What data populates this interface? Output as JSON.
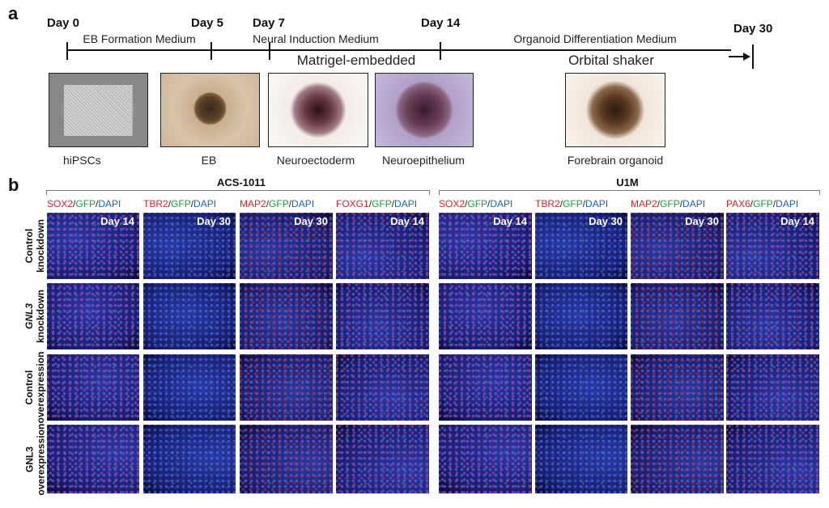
{
  "panel_a": {
    "label": "a",
    "days": [
      "Day 0",
      "Day 5",
      "Day 7",
      "Day 14",
      "Day 30"
    ],
    "media": [
      "EB Formation Medium",
      "Neural Induction Medium",
      "Organoid Differentiation Medium"
    ],
    "conditions": [
      "Matrigel-embedded",
      "Orbital shaker"
    ],
    "stages": [
      "hiPSCs",
      "EB",
      "Neuroectoderm",
      "Neuroepithelium",
      "Forebrain organoid"
    ]
  },
  "panel_b": {
    "label": "b",
    "separator": "/",
    "marker_colors": [
      "#e0202a",
      "#1a9a3a",
      "#1f5fc0"
    ],
    "groups": [
      {
        "name": "ACS-1011",
        "columns": [
          {
            "markers": [
              "SOX2",
              "GFP",
              "DAPI"
            ],
            "day": "Day 14"
          },
          {
            "markers": [
              "TBR2",
              "GFP",
              "DAPI"
            ],
            "day": "Day 30"
          },
          {
            "markers": [
              "MAP2",
              "GFP",
              "DAPI"
            ],
            "day": "Day 30"
          },
          {
            "markers": [
              "FOXG1",
              "GFP",
              "DAPI"
            ],
            "day": "Day 14"
          }
        ]
      },
      {
        "name": "U1M",
        "columns": [
          {
            "markers": [
              "SOX2",
              "GFP",
              "DAPI"
            ],
            "day": "Day 14"
          },
          {
            "markers": [
              "TBR2",
              "GFP",
              "DAPI"
            ],
            "day": "Day 30"
          },
          {
            "markers": [
              "MAP2",
              "GFP",
              "DAPI"
            ],
            "day": "Day 30"
          },
          {
            "markers": [
              "PAX6",
              "GFP",
              "DAPI"
            ],
            "day": "Day 14"
          }
        ]
      }
    ],
    "rows": [
      [
        "Control",
        "knockdown"
      ],
      [
        "GNL3",
        "knockdown"
      ],
      [
        "Control",
        "overexpression"
      ],
      [
        "GNL3",
        "overexpression"
      ]
    ]
  }
}
